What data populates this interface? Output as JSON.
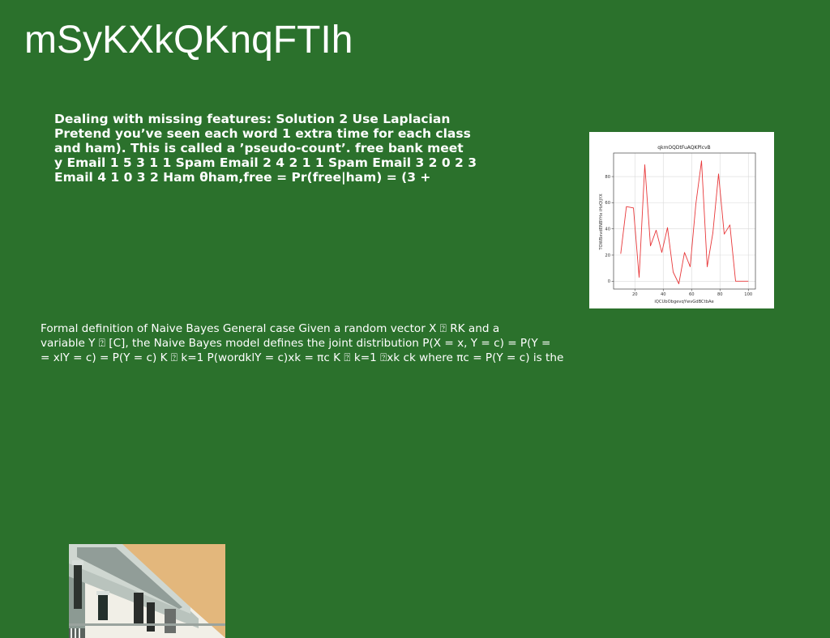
{
  "slide": {
    "title": "mSyKXkQKnqFTIh",
    "bold_lines": [
      "Dealing with missing features: Solution 2 Use Laplacian",
      "Pretend you’ve seen each word 1 extra time for each class",
      "and ham). This is called a ’pseudo-count’. free bank meet",
      "y Email 1 5 3 1 1 Spam Email 2 4 2 1 1 Spam Email 3 2 0 2 3",
      "Email 4 1 0 3 2 Ham θham,free = Pr(free|ham) = (3 +"
    ],
    "plain_lines": [
      "Formal definition of Naive Bayes General case Given a random vector X ⍰ RK and a",
      "variable Y ⍰ [C], the Naive Bayes model defines the joint distribution P(X = x, Y = c) = P(Y =",
      "= xlY = c) = P(Y = c) K ⍰ k=1 P(wordklY = c)xk = πc K ⍰ k=1 ⍰xk ck where πc = P(Y = c) is the"
    ]
  },
  "colors": {
    "background": "#2b712c",
    "text": "#ffffff",
    "line": "#e8383a"
  },
  "photo": {
    "icon": "building-facade-photo"
  },
  "chart_data": {
    "type": "line",
    "title": "qkmOQDtFuAQKPlcvB",
    "xlabel": "iQCUbObgevqYwvGdBCtbAe",
    "ylabel": "TOWBxvdENBYHx iHzQljYX",
    "xlim": [
      5,
      105
    ],
    "ylim": [
      -6,
      98
    ],
    "xticks": [
      20,
      40,
      60,
      80,
      100
    ],
    "yticks": [
      0,
      20,
      40,
      60,
      80
    ],
    "grid": true,
    "series": [
      {
        "color": "#e8383a",
        "x": [
          10,
          14,
          19,
          23,
          27,
          31,
          35,
          39,
          43,
          47,
          51,
          55,
          59,
          63,
          67,
          71,
          75,
          79,
          83,
          87,
          91,
          96,
          100
        ],
        "y": [
          21,
          57,
          56,
          3,
          89,
          27,
          39,
          22,
          41,
          7,
          -2,
          22,
          11,
          59,
          92,
          11,
          37,
          82,
          36,
          43,
          0,
          0,
          0
        ]
      }
    ]
  }
}
